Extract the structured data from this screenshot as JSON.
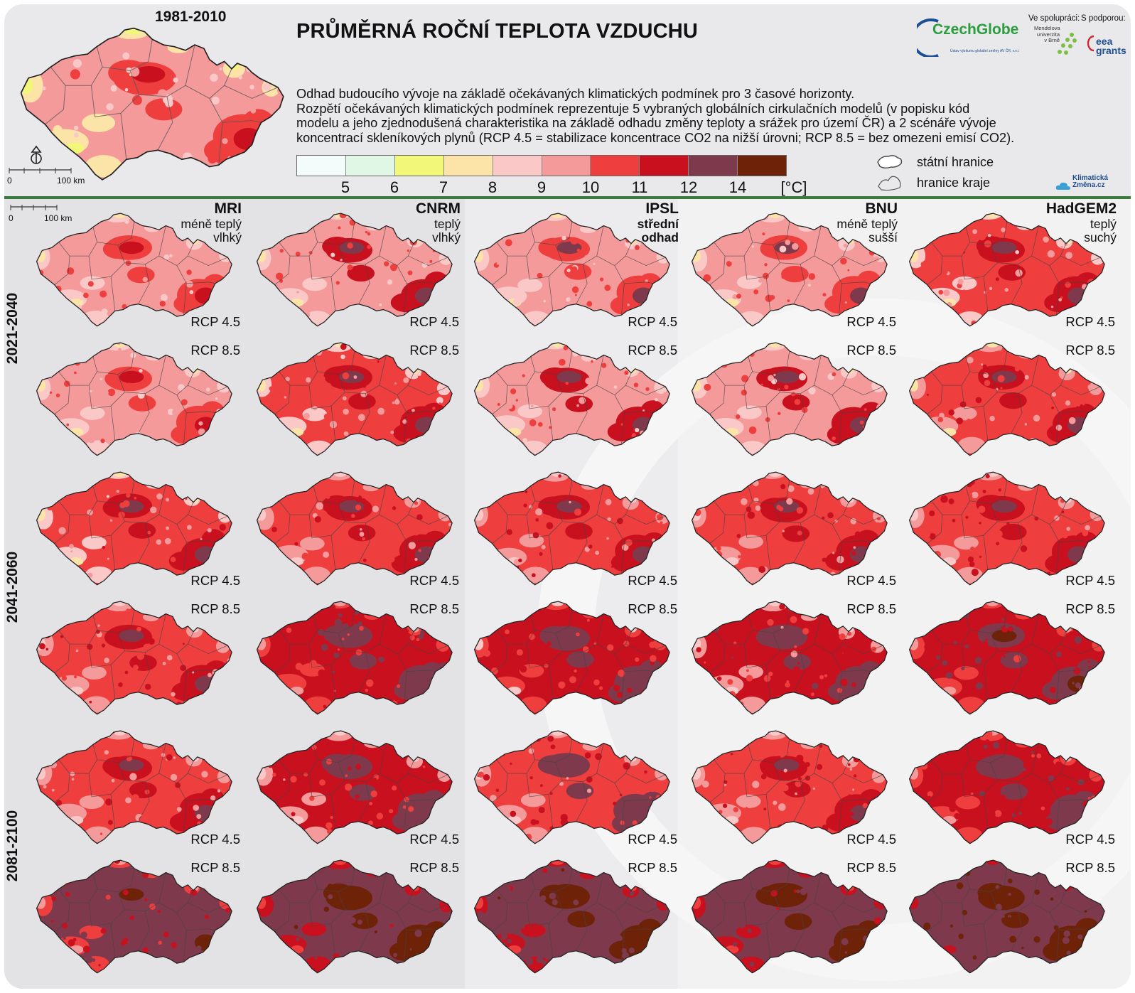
{
  "title": "PRŮMĚRNÁ ROČNÍ TEPLOTA VZDUCHU",
  "baseline": {
    "period": "1981-2010",
    "scale_zero": "0",
    "scale_label": "100 km"
  },
  "description": [
    "Odhad budoucího vývoje na základě očekávaných klimatických podmínek pro 3 časové horizonty.",
    "Rozpětí očekávaných klimatických podmínek reprezentuje 5 vybraných globálních cirkulačních modelů (v popisku kód",
    "modelu a jeho zjednodušená charakteristika na základě odhadu změny teploty a srážek pro území ČR) a 2 scénáře vývoje",
    "koncentrací skleníkových plynů (RCP 4.5 = stabilizace koncentrace CO2 na nižší úrovni; RCP 8.5 = bez omezeni emisí CO2)."
  ],
  "legend": {
    "colors": [
      "#f4fbfb",
      "#e0f7e6",
      "#f2f77a",
      "#fce3a8",
      "#fbc8c8",
      "#f59a9a",
      "#ee3e3e",
      "#c8101e",
      "#7e3a4c",
      "#6e2208"
    ],
    "ticks": [
      "5",
      "6",
      "7",
      "8",
      "9",
      "10",
      "11",
      "12",
      "14"
    ],
    "unit": "[°C]"
  },
  "boundaries": {
    "state": "státní hranice",
    "region": "hranice kraje"
  },
  "logos": {
    "czechglobe": "CzechGlobe",
    "czechglobe_sub": "Ústav výzkumu globální změny AV ČR, v.v.i.",
    "cooperation": "Ve spolupráci:",
    "support": "S podporou:",
    "mendel": "Mendelova univerzita v Brně",
    "eea": "eea grants",
    "klimaticka": "Klimatická Změna.cz"
  },
  "grid_scale": {
    "zero": "0",
    "label": "100 km"
  },
  "models": [
    {
      "name": "MRI",
      "desc": [
        "méně teplý",
        "vlhký"
      ]
    },
    {
      "name": "CNRM",
      "desc": [
        "teplý",
        "vlhký"
      ]
    },
    {
      "name": "IPSL",
      "desc": [
        "střední",
        "odhad"
      ]
    },
    {
      "name": "BNU",
      "desc": [
        "méně teplý",
        "sušší"
      ]
    },
    {
      "name": "HadGEM2",
      "desc": [
        "teplý",
        "suchý"
      ]
    }
  ],
  "periods": [
    "2021-2040",
    "2041-2060",
    "2081-2100"
  ],
  "scenarios": [
    "RCP 4.5",
    "RCP 8.5"
  ],
  "map_levels": {
    "baseline": 9.0,
    "grid": [
      [
        [
          9.6,
          9.9,
          9.8,
          9.8,
          10.0
        ],
        [
          9.7,
          10.0,
          9.9,
          9.9,
          10.2
        ]
      ],
      [
        [
          10.0,
          10.6,
          10.5,
          10.3,
          10.8
        ],
        [
          10.5,
          11.4,
          11.2,
          11.0,
          11.8
        ]
      ],
      [
        [
          10.4,
          11.0,
          10.9,
          10.7,
          11.5
        ],
        [
          12.0,
          13.0,
          13.0,
          12.9,
          13.6
        ]
      ]
    ]
  }
}
